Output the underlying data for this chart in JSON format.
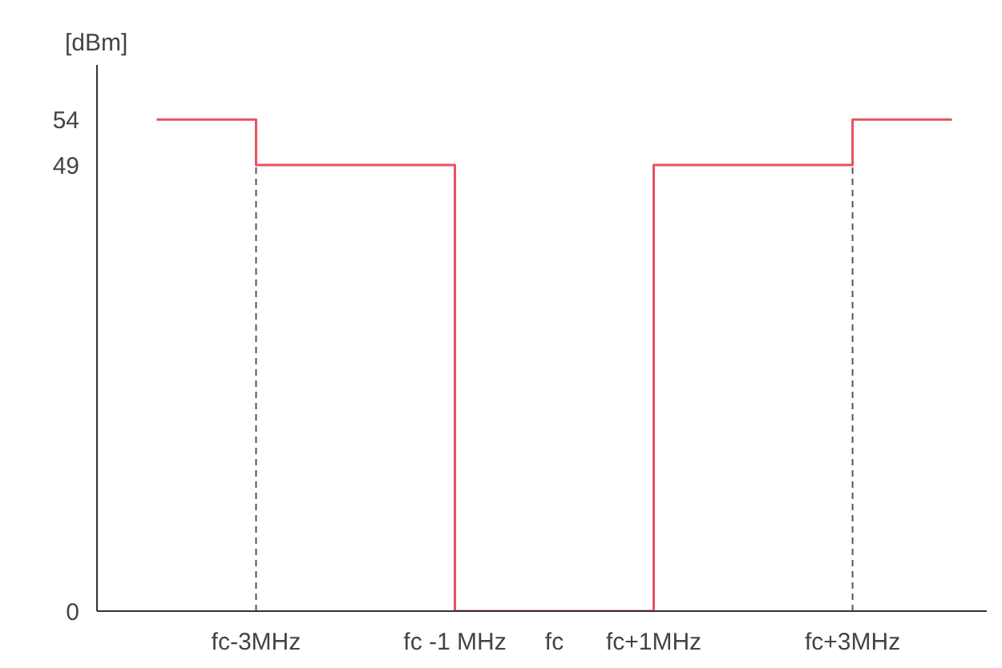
{
  "chart_data": {
    "type": "step",
    "ylabel": "[dBm]",
    "categories": [
      null,
      "fc-3MHz",
      null,
      "fc -1 MHz",
      "fc",
      "fc+1MHz",
      null,
      "fc+3MHz",
      null
    ],
    "series": [
      {
        "color": "#e8505f",
        "values": [
          54,
          49,
          49,
          0,
          0,
          49,
          49,
          54,
          54
        ]
      }
    ],
    "ylim": [
      0,
      60
    ],
    "yticks": [
      0,
      49,
      54
    ],
    "ref_lines": [
      {
        "axis": "x",
        "value": "fc-3MHz",
        "line_style": "dashed",
        "color": "#555555"
      },
      {
        "axis": "x",
        "value": "fc+3MHz",
        "line_style": "dashed",
        "color": "#555555"
      }
    ],
    "grid": false
  }
}
